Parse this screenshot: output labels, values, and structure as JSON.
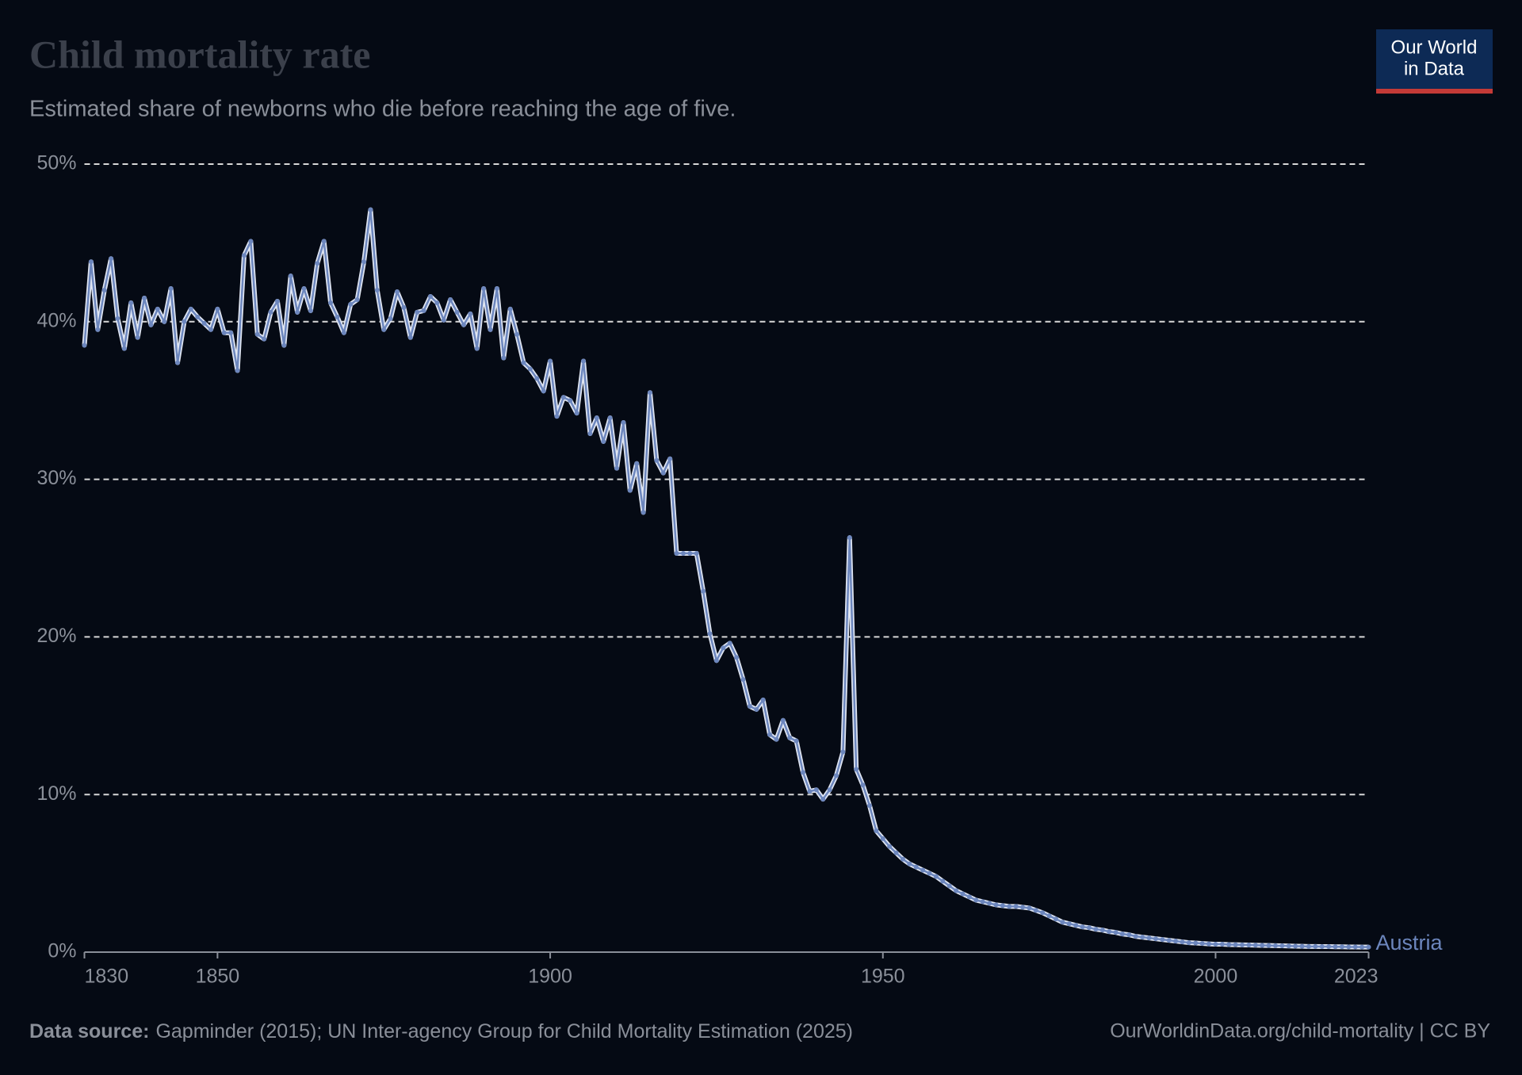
{
  "chart_data": {
    "type": "line",
    "title": "Child mortality rate",
    "subtitle": "Estimated share of newborns who die before reaching the age of five.",
    "logo_lines": [
      "Our World",
      "in Data"
    ],
    "source_label": "Data source:",
    "source": "Gapminder (2015); UN Inter-agency Group for Child Mortality Estimation (2025)",
    "url_license": "OurWorldinData.org/child-mortality | CC BY",
    "xlim": [
      1830,
      2023
    ],
    "xticks": [
      1830,
      1850,
      1900,
      1950,
      2000,
      2023
    ],
    "ylim": [
      0,
      50
    ],
    "yticks": [
      {
        "value": 0,
        "label": "0%"
      },
      {
        "value": 10,
        "label": "10%"
      },
      {
        "value": 20,
        "label": "20%"
      },
      {
        "value": 30,
        "label": "30%"
      },
      {
        "value": 40,
        "label": "40%"
      },
      {
        "value": 50,
        "label": "50%"
      }
    ],
    "grid": true,
    "x": [
      1830,
      1831,
      1832,
      1833,
      1834,
      1835,
      1836,
      1837,
      1838,
      1839,
      1840,
      1841,
      1842,
      1843,
      1844,
      1845,
      1846,
      1847,
      1848,
      1849,
      1850,
      1851,
      1852,
      1853,
      1854,
      1855,
      1856,
      1857,
      1858,
      1859,
      1860,
      1861,
      1862,
      1863,
      1864,
      1865,
      1866,
      1867,
      1868,
      1869,
      1870,
      1871,
      1872,
      1873,
      1874,
      1875,
      1876,
      1877,
      1878,
      1879,
      1880,
      1881,
      1882,
      1883,
      1884,
      1885,
      1886,
      1887,
      1888,
      1889,
      1890,
      1891,
      1892,
      1893,
      1894,
      1895,
      1896,
      1897,
      1898,
      1899,
      1900,
      1901,
      1902,
      1903,
      1904,
      1905,
      1906,
      1907,
      1908,
      1909,
      1910,
      1911,
      1912,
      1913,
      1914,
      1915,
      1916,
      1917,
      1918,
      1919,
      1920,
      1921,
      1922,
      1923,
      1924,
      1925,
      1926,
      1927,
      1928,
      1929,
      1930,
      1931,
      1932,
      1933,
      1934,
      1935,
      1936,
      1937,
      1938,
      1939,
      1940,
      1941,
      1942,
      1943,
      1944,
      1945,
      1946,
      1947,
      1948,
      1949,
      1950,
      1951,
      1952,
      1953,
      1954,
      1955,
      1956,
      1957,
      1958,
      1959,
      1960,
      1961,
      1962,
      1963,
      1964,
      1965,
      1966,
      1967,
      1968,
      1969,
      1970,
      1971,
      1972,
      1973,
      1974,
      1975,
      1976,
      1977,
      1978,
      1979,
      1980,
      1981,
      1982,
      1983,
      1984,
      1985,
      1986,
      1987,
      1988,
      1989,
      1990,
      1991,
      1992,
      1993,
      1994,
      1995,
      1996,
      1997,
      1998,
      1999,
      2000,
      2001,
      2002,
      2003,
      2004,
      2005,
      2006,
      2007,
      2008,
      2009,
      2010,
      2011,
      2012,
      2013,
      2014,
      2015,
      2016,
      2017,
      2018,
      2019,
      2020,
      2021,
      2022,
      2023
    ],
    "series": [
      {
        "name": "Austria",
        "color": "#6c86bd",
        "values": [
          38.5,
          43.8,
          39.5,
          42,
          44,
          40.2,
          38.3,
          41.2,
          39,
          41.5,
          39.8,
          40.8,
          40,
          42.1,
          37.4,
          40,
          40.8,
          40.3,
          39.9,
          39.5,
          40.8,
          39.3,
          39.3,
          36.9,
          44.2,
          45.1,
          39.2,
          38.9,
          40.6,
          41.3,
          38.5,
          42.9,
          40.6,
          42.1,
          40.7,
          43.7,
          45.1,
          41.2,
          40.3,
          39.3,
          41.1,
          41.4,
          43.8,
          47.1,
          42,
          39.5,
          40.2,
          41.9,
          40.9,
          39,
          40.6,
          40.7,
          41.6,
          41.2,
          40.1,
          41.4,
          40.6,
          39.8,
          40.5,
          38.3,
          42.1,
          39.5,
          42.1,
          37.7,
          40.8,
          39.2,
          37.4,
          37,
          36.4,
          35.6,
          37.5,
          34,
          35.2,
          35,
          34.2,
          37.5,
          32.9,
          33.9,
          32.4,
          33.9,
          30.7,
          33.6,
          29.3,
          31,
          27.9,
          35.5,
          31.2,
          30.4,
          31.3,
          25.3,
          25.3,
          25.3,
          25.3,
          22.9,
          20.2,
          18.5,
          19.3,
          19.6,
          18.7,
          17.3,
          15.6,
          15.4,
          16,
          13.8,
          13.5,
          14.7,
          13.6,
          13.4,
          11.4,
          10.2,
          10.3,
          9.7,
          10.3,
          11.2,
          12.7,
          26.3,
          11.6,
          10.6,
          9.3,
          7.7,
          7.2,
          6.7,
          6.3,
          5.9,
          5.6,
          5.4,
          5.2,
          5,
          4.8,
          4.5,
          4.2,
          3.9,
          3.7,
          3.5,
          3.3,
          3.2,
          3.1,
          3,
          2.95,
          2.9,
          2.9,
          2.85,
          2.8,
          2.65,
          2.5,
          2.3,
          2.1,
          1.9,
          1.8,
          1.7,
          1.6,
          1.55,
          1.45,
          1.4,
          1.3,
          1.25,
          1.15,
          1.1,
          1,
          0.95,
          0.9,
          0.85,
          0.8,
          0.75,
          0.7,
          0.65,
          0.6,
          0.58,
          0.55,
          0.52,
          0.5,
          0.5,
          0.48,
          0.47,
          0.46,
          0.45,
          0.44,
          0.43,
          0.42,
          0.41,
          0.4,
          0.39,
          0.38,
          0.37,
          0.36,
          0.36,
          0.35,
          0.35,
          0.34,
          0.34,
          0.33,
          0.33,
          0.32,
          0.32
        ]
      }
    ]
  }
}
